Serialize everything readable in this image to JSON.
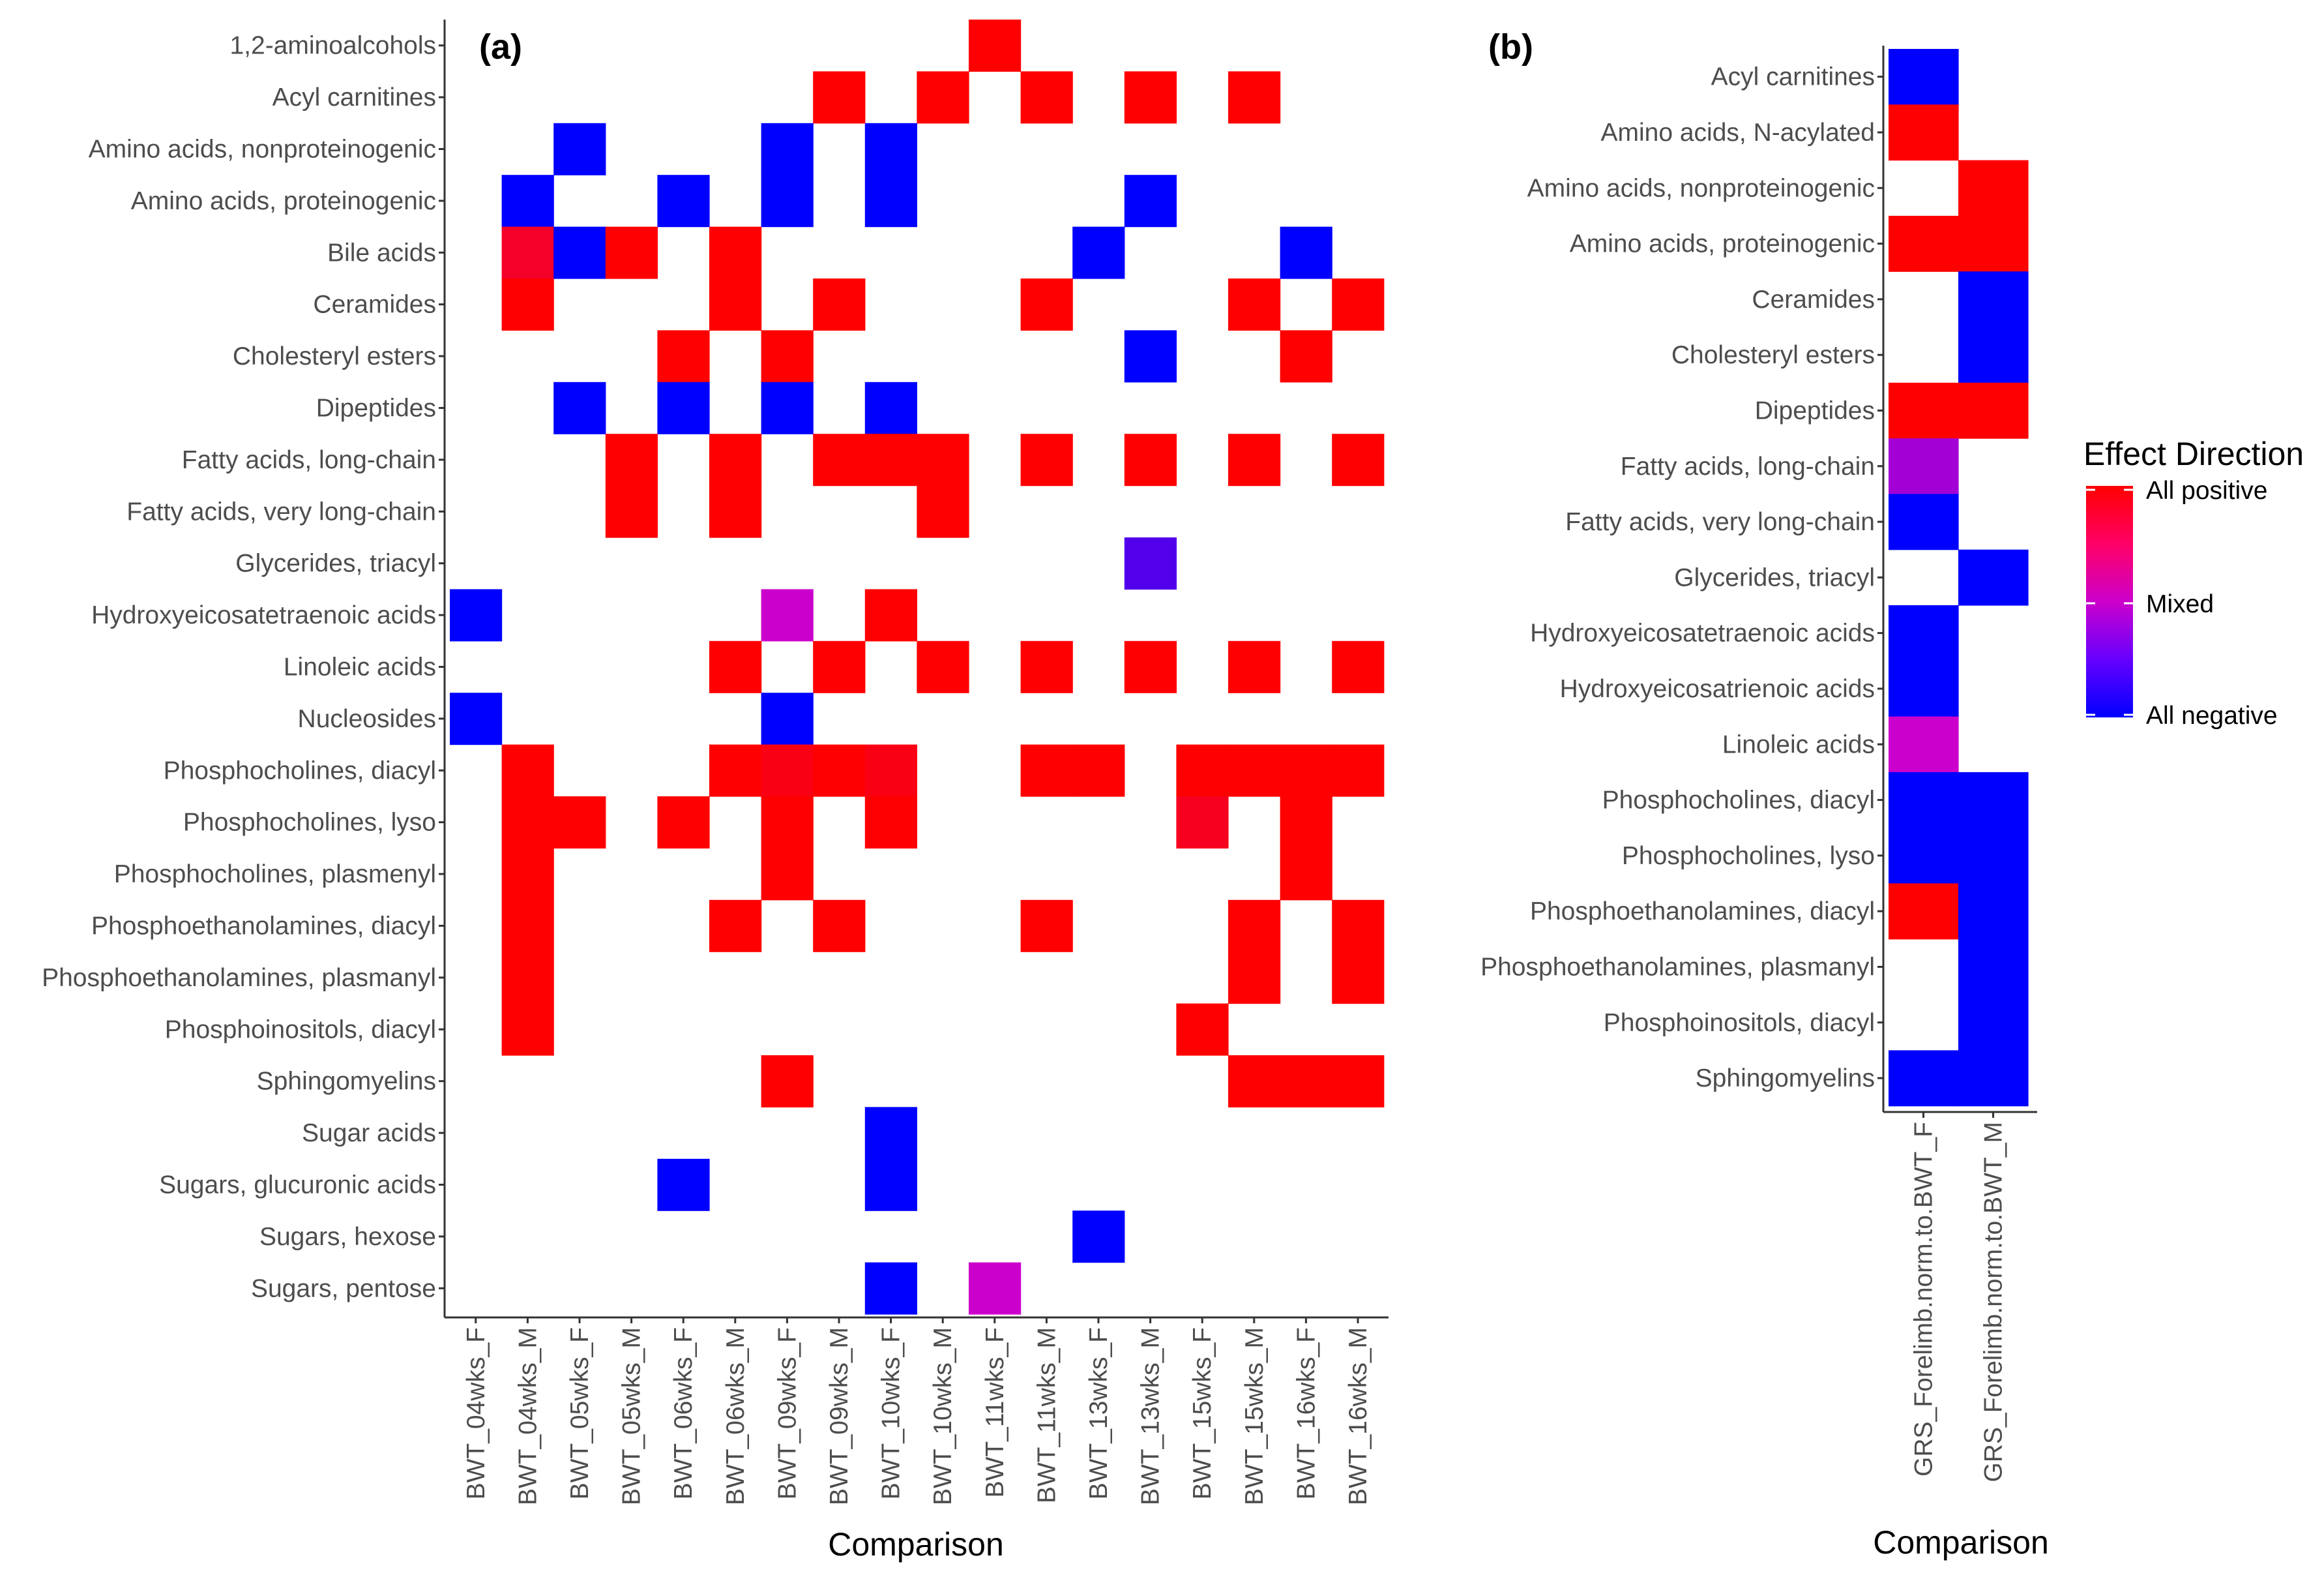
{
  "chart_data": [
    {
      "type": "heatmap",
      "panel_label": "(a)",
      "xlabel": "Comparison",
      "ylabel": "",
      "x": [
        "BWT_04wks_F",
        "BWT_04wks_M",
        "BWT_05wks_F",
        "BWT_05wks_M",
        "BWT_06wks_F",
        "BWT_06wks_M",
        "BWT_09wks_F",
        "BWT_09wks_M",
        "BWT_10wks_F",
        "BWT_10wks_M",
        "BWT_11wks_F",
        "BWT_11wks_M",
        "BWT_13wks_F",
        "BWT_13wks_M",
        "BWT_15wks_F",
        "BWT_15wks_M",
        "BWT_16wks_F",
        "BWT_16wks_M"
      ],
      "y": [
        "1,2-aminoalcohols",
        "Acyl carnitines",
        "Amino acids, nonproteinogenic",
        "Amino acids, proteinogenic",
        "Bile acids",
        "Ceramides",
        "Cholesteryl esters",
        "Dipeptides",
        "Fatty acids, long-chain",
        "Fatty acids, very long-chain",
        "Glycerides, triacyl",
        "Hydroxyeicosatetraenoic acids",
        "Linoleic acids",
        "Nucleosides",
        "Phosphocholines, diacyl",
        "Phosphocholines, lyso",
        "Phosphocholines, plasmenyl",
        "Phosphoethanolamines, diacyl",
        "Phosphoethanolamines, plasmanyl",
        "Phosphoinositols, diacyl",
        "Sphingomyelins",
        "Sugar acids",
        "Sugars, glucuronic acids",
        "Sugars, hexose",
        "Sugars, pentose"
      ],
      "value_range": [
        -1,
        1
      ],
      "values": [
        [
          null,
          null,
          null,
          null,
          null,
          null,
          null,
          null,
          null,
          null,
          1,
          null,
          null,
          null,
          null,
          null,
          null,
          null
        ],
        [
          null,
          null,
          null,
          null,
          null,
          null,
          null,
          1,
          null,
          1,
          null,
          1,
          null,
          1,
          null,
          1,
          null,
          null
        ],
        [
          null,
          null,
          -1,
          null,
          null,
          null,
          -1,
          null,
          -1,
          null,
          null,
          null,
          null,
          null,
          null,
          null,
          null,
          null
        ],
        [
          null,
          -1,
          null,
          null,
          -1,
          null,
          -1,
          null,
          -1,
          null,
          null,
          null,
          null,
          -1,
          null,
          null,
          null,
          null
        ],
        [
          null,
          0.8,
          -1,
          1,
          null,
          1,
          null,
          null,
          null,
          null,
          null,
          null,
          -1,
          null,
          null,
          null,
          -1,
          null
        ],
        [
          null,
          1,
          null,
          null,
          null,
          1,
          null,
          1,
          null,
          null,
          null,
          1,
          null,
          null,
          null,
          1,
          null,
          1
        ],
        [
          null,
          null,
          null,
          null,
          1,
          null,
          1,
          null,
          null,
          null,
          null,
          null,
          null,
          -1,
          null,
          null,
          1,
          null
        ],
        [
          null,
          null,
          -1,
          null,
          -1,
          null,
          -1,
          null,
          -1,
          null,
          null,
          null,
          null,
          null,
          null,
          null,
          null,
          null
        ],
        [
          null,
          null,
          null,
          1,
          null,
          1,
          null,
          1,
          1,
          1,
          null,
          1,
          null,
          1,
          null,
          1,
          null,
          1
        ],
        [
          null,
          null,
          null,
          1,
          null,
          1,
          null,
          null,
          null,
          1,
          null,
          null,
          null,
          null,
          null,
          null,
          null,
          null
        ],
        [
          null,
          null,
          null,
          null,
          null,
          null,
          null,
          null,
          null,
          null,
          null,
          null,
          null,
          -0.6,
          null,
          null,
          null,
          null
        ],
        [
          -1,
          null,
          null,
          null,
          null,
          null,
          0,
          null,
          1,
          null,
          null,
          null,
          null,
          null,
          null,
          null,
          null,
          null
        ],
        [
          null,
          null,
          null,
          null,
          null,
          1,
          null,
          1,
          null,
          1,
          null,
          1,
          null,
          1,
          null,
          1,
          null,
          1
        ],
        [
          -1,
          null,
          null,
          null,
          null,
          null,
          -1,
          null,
          null,
          null,
          null,
          null,
          null,
          null,
          null,
          null,
          null,
          null
        ],
        [
          null,
          1,
          null,
          null,
          null,
          1,
          0.9,
          1,
          0.9,
          null,
          null,
          1,
          1,
          null,
          1,
          1,
          1,
          1
        ],
        [
          null,
          1,
          1,
          null,
          1,
          null,
          1,
          null,
          1,
          null,
          null,
          null,
          null,
          null,
          0.85,
          null,
          1,
          null
        ],
        [
          null,
          1,
          null,
          null,
          null,
          null,
          1,
          null,
          null,
          null,
          null,
          null,
          null,
          null,
          null,
          null,
          1,
          null
        ],
        [
          null,
          1,
          null,
          null,
          null,
          1,
          null,
          1,
          null,
          null,
          null,
          1,
          null,
          null,
          null,
          1,
          null,
          1
        ],
        [
          null,
          1,
          null,
          null,
          null,
          null,
          null,
          null,
          null,
          null,
          null,
          null,
          null,
          null,
          null,
          1,
          null,
          1
        ],
        [
          null,
          1,
          null,
          null,
          null,
          null,
          null,
          null,
          null,
          null,
          null,
          null,
          null,
          null,
          1,
          null,
          null,
          null
        ],
        [
          null,
          null,
          null,
          null,
          null,
          null,
          1,
          null,
          null,
          null,
          null,
          null,
          null,
          null,
          null,
          1,
          1,
          1
        ],
        [
          null,
          null,
          null,
          null,
          null,
          null,
          null,
          null,
          -1,
          null,
          null,
          null,
          null,
          null,
          null,
          null,
          null,
          null
        ],
        [
          null,
          null,
          null,
          null,
          -1,
          null,
          null,
          null,
          -1,
          null,
          null,
          null,
          null,
          null,
          null,
          null,
          null,
          null
        ],
        [
          null,
          null,
          null,
          null,
          null,
          null,
          null,
          null,
          null,
          null,
          null,
          null,
          -1,
          null,
          null,
          null,
          null,
          null
        ],
        [
          null,
          null,
          null,
          null,
          null,
          null,
          null,
          null,
          -1,
          null,
          0,
          null,
          null,
          null,
          null,
          null,
          null,
          null
        ]
      ]
    },
    {
      "type": "heatmap",
      "panel_label": "(b)",
      "xlabel": "Comparison",
      "ylabel": "",
      "x": [
        "GRS_Forelimb.norm.to.BWT_F",
        "GRS_Forelimb.norm.to.BWT_M"
      ],
      "y": [
        "Acyl carnitines",
        "Amino acids, N-acylated",
        "Amino acids, nonproteinogenic",
        "Amino acids, proteinogenic",
        "Ceramides",
        "Cholesteryl esters",
        "Dipeptides",
        "Fatty acids, long-chain",
        "Fatty acids, very long-chain",
        "Glycerides, triacyl",
        "Hydroxyeicosatetraenoic acids",
        "Hydroxyeicosatrienoic acids",
        "Linoleic acids",
        "Phosphocholines, diacyl",
        "Phosphocholines, lyso",
        "Phosphoethanolamines, diacyl",
        "Phosphoethanolamines, plasmanyl",
        "Phosphoinositols, diacyl",
        "Sphingomyelins"
      ],
      "value_range": [
        -1,
        1
      ],
      "values": [
        [
          -1,
          null
        ],
        [
          1,
          null
        ],
        [
          null,
          1
        ],
        [
          1,
          1
        ],
        [
          null,
          -1
        ],
        [
          null,
          -1
        ],
        [
          1,
          1
        ],
        [
          -0.2,
          null
        ],
        [
          -1,
          null
        ],
        [
          null,
          -1
        ],
        [
          -1,
          null
        ],
        [
          -1,
          null
        ],
        [
          0,
          null
        ],
        [
          -1,
          -1
        ],
        [
          -1,
          -1
        ],
        [
          1,
          -1
        ],
        [
          null,
          -1
        ],
        [
          null,
          -1
        ],
        [
          -1,
          -1
        ]
      ]
    }
  ],
  "legend": {
    "title": "Effect Direction",
    "labels": [
      "All positive",
      "Mixed",
      "All negative"
    ],
    "colors": {
      "positive": "#ff0000",
      "mixed": "#cc00cc",
      "negative": "#0000ff"
    },
    "gradient_stops": [
      "#ff0000",
      "#ff0066",
      "#cc00cc",
      "#6600ff",
      "#0000ff"
    ]
  }
}
